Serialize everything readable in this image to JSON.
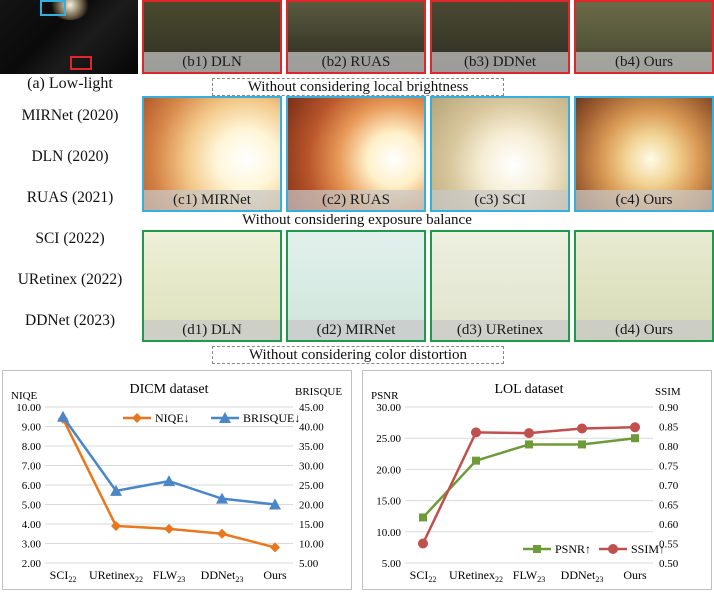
{
  "lowlight": {
    "label": "(a) Low-light"
  },
  "methods": [
    "MIRNet (2020)",
    "DLN (2020)",
    "RUAS (2021)",
    "SCI (2022)",
    "URetinex (2022)",
    "DDNet (2023)"
  ],
  "rows": [
    {
      "note": "Without considering local brightness",
      "panels": [
        "(b1) DLN",
        "(b2) RUAS",
        "(b3) DDNet",
        "(b4) Ours"
      ]
    },
    {
      "note": "Without considering exposure balance",
      "panels": [
        "(c1) MIRNet",
        "(c2) RUAS",
        "(c3) SCI",
        "(c4) Ours"
      ]
    },
    {
      "note": "Without considering color distortion",
      "panels": [
        "(d1) DLN",
        "(d2) MIRNet",
        "(d3) URetinex",
        "(d4) Ours"
      ]
    }
  ],
  "colors": {
    "orange": "#E8771E",
    "blue": "#4A86C8",
    "green": "#6E9A3A",
    "red": "#C0504D",
    "row_red": "#e0262b",
    "row_blue": "#35aee0",
    "row_green": "#1f9a4a"
  },
  "chart_data": [
    {
      "type": "line",
      "title": "DICM dataset",
      "categories": [
        "SCI22",
        "URetinex22",
        "FLW23",
        "DDNet23",
        "Ours"
      ],
      "category_labels": [
        {
          "base": "SCI",
          "sub": "22"
        },
        {
          "base": "URetinex",
          "sub": "22"
        },
        {
          "base": "FLW",
          "sub": "23"
        },
        {
          "base": "DDNet",
          "sub": "23"
        },
        {
          "base": "Ours",
          "sub": ""
        }
      ],
      "ylabel": "NIQE",
      "y2label": "BRISQUE",
      "ylim": [
        2.0,
        10.0
      ],
      "y2lim": [
        5.0,
        45.0
      ],
      "yticks": [
        "10.00",
        "9.00",
        "8.00",
        "7.00",
        "6.00",
        "5.00",
        "4.00",
        "3.00",
        "2.00"
      ],
      "y2ticks": [
        "45.00",
        "40.00",
        "35.00",
        "30.00",
        "25.00",
        "20.00",
        "15.00",
        "10.00",
        "5.00"
      ],
      "series": [
        {
          "name": "NIQE↓",
          "axis": "left",
          "marker": "diamond",
          "color": "#E8771E",
          "values": [
            9.4,
            3.9,
            3.75,
            3.5,
            2.8
          ]
        },
        {
          "name": "BRISQUE↓",
          "axis": "right",
          "marker": "triangle",
          "color": "#4A86C8",
          "values": [
            42.5,
            23.5,
            26.0,
            21.5,
            20.0
          ]
        }
      ],
      "legend": "top-right"
    },
    {
      "type": "line",
      "title": "LOL dataset",
      "categories": [
        "SCI22",
        "URetinex22",
        "FLW23",
        "DDNet23",
        "Ours"
      ],
      "category_labels": [
        {
          "base": "SCI",
          "sub": "22"
        },
        {
          "base": "URetinex",
          "sub": "22"
        },
        {
          "base": "FLW",
          "sub": "23"
        },
        {
          "base": "DDNet",
          "sub": "23"
        },
        {
          "base": "Ours",
          "sub": ""
        }
      ],
      "ylabel": "PSNR",
      "y2label": "SSIM",
      "ylim": [
        5.0,
        30.0
      ],
      "y2lim": [
        0.5,
        0.9
      ],
      "yticks": [
        "30.00",
        "25.00",
        "20.00",
        "15.00",
        "10.00",
        "5.00"
      ],
      "y2ticks": [
        "0.90",
        "0.85",
        "0.80",
        "0.75",
        "0.70",
        "0.65",
        "0.60",
        "0.55",
        "0.50"
      ],
      "series": [
        {
          "name": "PSNR↑",
          "axis": "left",
          "marker": "square",
          "color": "#6E9A3A",
          "values": [
            12.3,
            21.4,
            24.0,
            24.0,
            25.0
          ]
        },
        {
          "name": "SSIM↑",
          "axis": "right",
          "marker": "circle",
          "color": "#C0504D",
          "values": [
            0.55,
            0.835,
            0.833,
            0.845,
            0.848
          ]
        }
      ],
      "legend": "bottom-right"
    }
  ]
}
